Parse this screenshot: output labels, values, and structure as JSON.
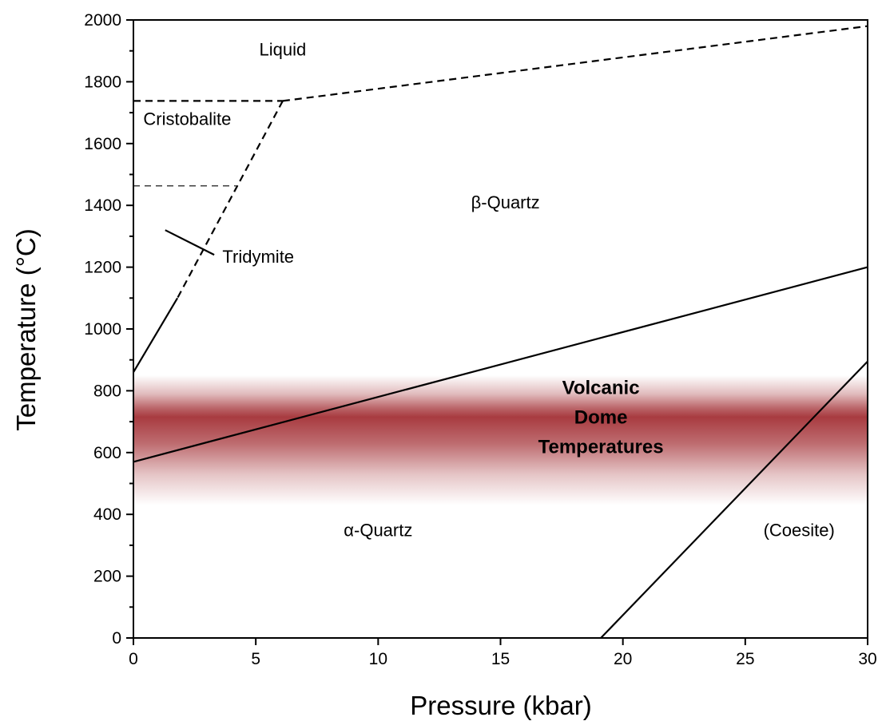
{
  "chart_data": {
    "type": "line",
    "title": "",
    "xlabel": "Pressure (kbar)",
    "ylabel": "Temperature (°C)",
    "xlim": [
      0,
      30
    ],
    "ylim": [
      0,
      2000
    ],
    "x_ticks": [
      0,
      5,
      10,
      15,
      20,
      25,
      30
    ],
    "y_ticks": [
      0,
      200,
      400,
      600,
      800,
      1000,
      1200,
      1400,
      1600,
      1800,
      2000
    ],
    "y_minor_step": 100,
    "x_tick_labels": [
      "0",
      "5",
      "10",
      "15",
      "20",
      "25",
      "30"
    ],
    "y_tick_labels": [
      "0",
      "200",
      "400",
      "600",
      "800",
      "1000",
      "1200",
      "1400",
      "1600",
      "1800",
      "2000"
    ],
    "grid": false,
    "legend": "none",
    "shaded_band": {
      "y_range": [
        430,
        850
      ],
      "y_peak": 715,
      "color": "#a83b40",
      "label_lines": [
        "Volcanic",
        "Dome",
        "Temperatures"
      ],
      "label_position": [
        19.1,
        715
      ]
    },
    "boundaries": [
      {
        "style": "dashed",
        "points": [
          [
            0,
            1738
          ],
          [
            6.1,
            1738
          ]
        ]
      },
      {
        "style": "dashed",
        "points": [
          [
            6.1,
            1738
          ],
          [
            30,
            1980
          ]
        ]
      },
      {
        "style": "dashed",
        "points": [
          [
            6.1,
            1738
          ],
          [
            1.8,
            1100
          ]
        ]
      },
      {
        "style": "solid",
        "points": [
          [
            1.8,
            1100
          ],
          [
            0,
            860
          ]
        ]
      },
      {
        "style": "dashed-thin",
        "points": [
          [
            0,
            1463
          ],
          [
            4.2,
            1463
          ]
        ]
      },
      {
        "style": "solid",
        "points": [
          [
            1.3,
            1320
          ],
          [
            3.3,
            1240
          ]
        ]
      },
      {
        "style": "solid",
        "points": [
          [
            0,
            570
          ],
          [
            30,
            1200
          ]
        ]
      },
      {
        "style": "solid",
        "points": [
          [
            19.1,
            0
          ],
          [
            30,
            895
          ]
        ]
      }
    ],
    "regions": [
      {
        "label": "Liquid",
        "position": [
          6.1,
          1885
        ]
      },
      {
        "label": "Cristobalite",
        "position": [
          2.2,
          1660
        ]
      },
      {
        "label": "β-Quartz",
        "position": [
          15.2,
          1390
        ]
      },
      {
        "label": "Tridymite",
        "position": [
          5.1,
          1215
        ]
      },
      {
        "label": "α-Quartz",
        "position": [
          10.0,
          330
        ]
      },
      {
        "label": "(Coesite)",
        "position": [
          27.2,
          330
        ]
      }
    ]
  }
}
